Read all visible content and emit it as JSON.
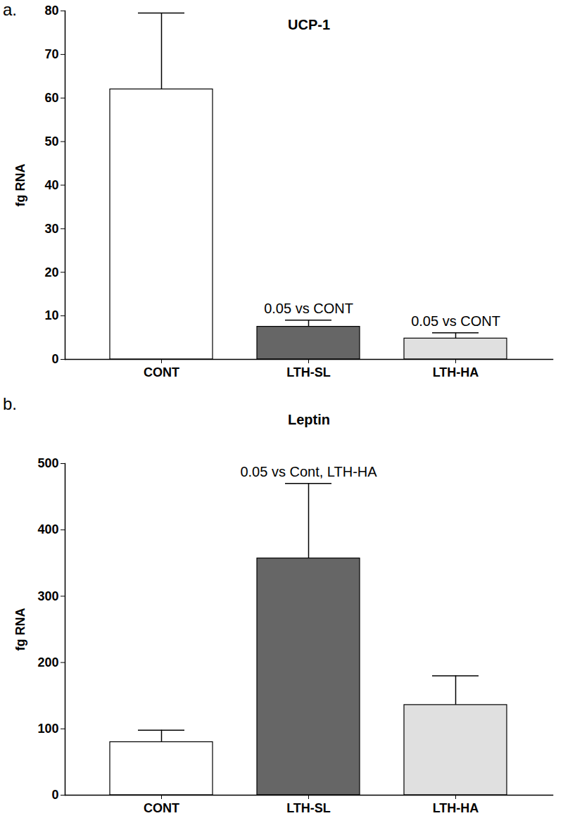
{
  "chart_data": [
    {
      "type": "bar",
      "panel_label": "a.",
      "title": "UCP-1",
      "y_label": "fg RNA",
      "categories": [
        "CONT",
        "LTH-SL",
        "LTH-HA"
      ],
      "values": [
        62,
        7.5,
        4.8
      ],
      "errors": [
        17.5,
        1.5,
        1.3
      ],
      "colors": [
        "#ffffff",
        "#666666",
        "#e0e0e0"
      ],
      "ylim": [
        0,
        80
      ],
      "yticks": [
        0,
        10,
        20,
        30,
        40,
        50,
        60,
        70,
        80
      ],
      "annotations": [
        {
          "category": "LTH-SL",
          "text": "0.05 vs CONT"
        },
        {
          "category": "LTH-HA",
          "text": "0.05 vs CONT"
        }
      ]
    },
    {
      "type": "bar",
      "panel_label": "b.",
      "title": "Leptin",
      "y_label": "fg RNA",
      "categories": [
        "CONT",
        "LTH-SL",
        "LTH-HA"
      ],
      "values": [
        80,
        357,
        136
      ],
      "errors": [
        18,
        113,
        44
      ],
      "colors": [
        "#ffffff",
        "#666666",
        "#e0e0e0"
      ],
      "ylim": [
        0,
        500
      ],
      "yticks": [
        0,
        100,
        200,
        300,
        400,
        500
      ],
      "annotations": [
        {
          "category": "LTH-SL",
          "text": "0.05 vs Cont, LTH-HA"
        }
      ]
    }
  ]
}
